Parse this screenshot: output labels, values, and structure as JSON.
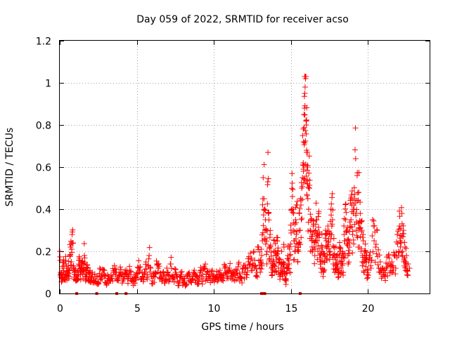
{
  "colors": {
    "series": "#ff0000",
    "axis": "#000000",
    "grid": "#a0a0a0"
  },
  "chart_data": {
    "type": "scatter",
    "title": "Day 059 of 2022, SRMTID for receiver acso",
    "xlabel": "GPS time / hours",
    "ylabel": "SRMTID / TECUs",
    "xlim": [
      0,
      24
    ],
    "ylim": [
      0,
      1.2
    ],
    "xticks": [
      0,
      5,
      10,
      15,
      20
    ],
    "xtick_labels": [
      "0",
      "5",
      "10",
      "15",
      "20"
    ],
    "yticks": [
      0,
      0.2,
      0.4,
      0.6,
      0.8,
      1.0,
      1.2
    ],
    "ytick_labels": [
      "0",
      "0.2",
      "0.4",
      "0.6",
      "0.8",
      "1",
      "1.2"
    ],
    "grid": true,
    "marker": "+",
    "series": [
      {
        "name": "SRMTID acso",
        "x": [
          0.0,
          0.1,
          0.2,
          0.3,
          0.4,
          0.5,
          0.6,
          0.7,
          0.8,
          0.9,
          1.0,
          1.1,
          1.2,
          1.3,
          1.4,
          1.5,
          1.6,
          1.7,
          1.8,
          1.9,
          2.0,
          2.2,
          2.4,
          2.6,
          2.8,
          3.0,
          3.2,
          3.4,
          3.6,
          3.8,
          4.0,
          4.2,
          4.4,
          4.6,
          4.8,
          5.0,
          5.2,
          5.4,
          5.6,
          5.8,
          6.0,
          6.2,
          6.4,
          6.6,
          6.8,
          7.0,
          7.2,
          7.4,
          7.6,
          7.8,
          8.0,
          8.2,
          8.4,
          8.6,
          8.8,
          9.0,
          9.2,
          9.4,
          9.6,
          9.8,
          10.0,
          10.2,
          10.4,
          10.6,
          10.8,
          11.0,
          11.2,
          11.4,
          11.6,
          11.8,
          12.0,
          12.2,
          12.4,
          12.6,
          12.8,
          13.0,
          13.1,
          13.2,
          13.3,
          13.4,
          13.5,
          13.6,
          13.7,
          13.8,
          13.9,
          14.0,
          14.1,
          14.2,
          14.3,
          14.4,
          14.5,
          14.6,
          14.7,
          14.8,
          14.9,
          15.0,
          15.1,
          15.2,
          15.3,
          15.4,
          15.5,
          15.6,
          15.7,
          15.8,
          15.85,
          15.9,
          15.95,
          16.0,
          16.05,
          16.1,
          16.2,
          16.3,
          16.4,
          16.5,
          16.6,
          16.7,
          16.8,
          16.9,
          17.0,
          17.1,
          17.2,
          17.3,
          17.4,
          17.5,
          17.6,
          17.7,
          17.8,
          17.9,
          18.0,
          18.1,
          18.2,
          18.3,
          18.4,
          18.5,
          18.6,
          18.7,
          18.8,
          18.9,
          19.0,
          19.1,
          19.2,
          19.3,
          19.4,
          19.5,
          19.6,
          19.7,
          19.8,
          19.9,
          20.0,
          20.2,
          20.4,
          20.6,
          20.8,
          21.0,
          21.2,
          21.4,
          21.6,
          21.8,
          22.0,
          22.1,
          22.2,
          22.3,
          22.4,
          22.5,
          22.6,
          22.7
        ],
        "y": [
          0.2,
          0.09,
          0.12,
          0.07,
          0.14,
          0.1,
          0.08,
          0.22,
          0.28,
          0.13,
          0.09,
          0.07,
          0.1,
          0.12,
          0.15,
          0.11,
          0.18,
          0.09,
          0.12,
          0.1,
          0.07,
          0.06,
          0.08,
          0.12,
          0.09,
          0.05,
          0.07,
          0.08,
          0.1,
          0.06,
          0.09,
          0.08,
          0.07,
          0.1,
          0.06,
          0.09,
          0.11,
          0.08,
          0.15,
          0.18,
          0.06,
          0.1,
          0.12,
          0.08,
          0.05,
          0.09,
          0.14,
          0.07,
          0.08,
          0.06,
          0.05,
          0.04,
          0.1,
          0.07,
          0.09,
          0.06,
          0.08,
          0.12,
          0.1,
          0.07,
          0.09,
          0.08,
          0.11,
          0.06,
          0.1,
          0.12,
          0.08,
          0.09,
          0.14,
          0.07,
          0.1,
          0.12,
          0.16,
          0.2,
          0.1,
          0.12,
          0.18,
          0.55,
          0.4,
          0.3,
          0.53,
          0.22,
          0.15,
          0.1,
          0.2,
          0.18,
          0.25,
          0.12,
          0.08,
          0.2,
          0.15,
          0.1,
          0.06,
          0.18,
          0.22,
          0.3,
          0.46,
          0.25,
          0.35,
          0.42,
          0.2,
          0.3,
          0.5,
          0.62,
          0.85,
          0.95,
          1.02,
          0.8,
          0.6,
          0.45,
          0.5,
          0.35,
          0.28,
          0.22,
          0.3,
          0.25,
          0.38,
          0.15,
          0.2,
          0.1,
          0.18,
          0.25,
          0.32,
          0.28,
          0.4,
          0.35,
          0.22,
          0.16,
          0.12,
          0.08,
          0.2,
          0.15,
          0.1,
          0.25,
          0.3,
          0.18,
          0.22,
          0.35,
          0.28,
          0.4,
          0.64,
          0.56,
          0.48,
          0.38,
          0.3,
          0.25,
          0.2,
          0.15,
          0.1,
          0.12,
          0.25,
          0.3,
          0.15,
          0.09,
          0.12,
          0.14,
          0.1,
          0.12,
          0.2,
          0.25,
          0.38,
          0.3,
          0.22,
          0.18,
          0.14,
          0.12
        ],
        "x2": [
          0.05,
          0.15,
          0.25,
          0.35,
          0.45,
          0.55,
          0.65,
          0.75,
          0.85,
          0.95,
          1.05,
          1.15,
          1.25,
          1.35,
          1.45,
          1.55,
          1.65,
          1.75,
          1.85,
          1.95,
          2.1,
          2.3,
          2.5,
          2.7,
          2.9,
          3.1,
          3.3,
          3.5,
          3.7,
          3.9,
          4.1,
          4.3,
          4.5,
          4.7,
          4.9,
          5.1,
          5.3,
          5.5,
          5.7,
          5.9,
          6.1,
          6.3,
          6.5,
          6.7,
          6.9,
          7.1,
          7.3,
          7.5,
          7.7,
          7.9,
          8.1,
          8.3,
          8.5,
          8.7,
          8.9,
          9.1,
          9.3,
          9.5,
          9.7,
          9.9,
          10.1,
          10.3,
          10.5,
          10.7,
          10.9,
          11.1,
          11.3,
          11.5,
          11.7,
          11.9,
          12.1,
          12.3,
          12.5,
          12.7,
          12.9,
          13.05,
          13.15,
          13.25,
          13.35,
          13.45,
          13.55,
          13.65,
          13.75,
          13.85,
          13.95,
          14.05,
          14.15,
          14.25,
          14.35,
          14.45,
          14.55,
          14.65,
          14.75,
          14.85,
          14.95,
          15.05,
          15.15,
          15.25,
          15.35,
          15.45,
          15.55,
          15.65,
          15.75,
          15.82,
          15.88,
          15.92,
          15.98,
          16.02,
          16.08,
          16.15,
          16.25,
          16.35,
          16.45,
          16.55,
          16.65,
          16.75,
          16.85,
          16.95,
          17.05,
          17.15,
          17.25,
          17.35,
          17.45,
          17.55,
          17.65,
          17.75,
          17.85,
          17.95,
          18.05,
          18.15,
          18.25,
          18.35,
          18.45,
          18.55,
          18.65,
          18.75,
          18.85,
          18.95,
          19.05,
          19.15,
          19.25,
          19.35,
          19.45,
          19.55,
          19.65,
          19.75,
          19.85,
          19.95,
          20.1,
          20.3,
          20.5,
          20.7,
          20.9,
          21.1,
          21.3,
          21.5,
          21.7,
          21.9,
          22.05,
          22.15,
          22.25,
          22.35,
          22.45,
          22.55,
          22.65
        ],
        "y2": [
          0.1,
          0.06,
          0.16,
          0.09,
          0.08,
          0.12,
          0.18,
          0.15,
          0.24,
          0.1,
          0.06,
          0.08,
          0.13,
          0.09,
          0.12,
          0.14,
          0.08,
          0.11,
          0.07,
          0.09,
          0.1,
          0.08,
          0.05,
          0.07,
          0.11,
          0.09,
          0.06,
          0.1,
          0.07,
          0.09,
          0.06,
          0.1,
          0.09,
          0.07,
          0.08,
          0.12,
          0.07,
          0.1,
          0.09,
          0.12,
          0.08,
          0.14,
          0.07,
          0.1,
          0.09,
          0.06,
          0.08,
          0.1,
          0.05,
          0.09,
          0.07,
          0.08,
          0.06,
          0.1,
          0.08,
          0.1,
          0.07,
          0.09,
          0.08,
          0.11,
          0.07,
          0.1,
          0.09,
          0.12,
          0.08,
          0.1,
          0.09,
          0.11,
          0.08,
          0.12,
          0.09,
          0.14,
          0.11,
          0.13,
          0.22,
          0.15,
          0.25,
          0.45,
          0.35,
          0.2,
          0.38,
          0.28,
          0.12,
          0.16,
          0.14,
          0.1,
          0.2,
          0.15,
          0.12,
          0.1,
          0.22,
          0.07,
          0.12,
          0.14,
          0.1,
          0.4,
          0.3,
          0.2,
          0.28,
          0.15,
          0.38,
          0.42,
          0.55,
          0.72,
          0.88,
          0.98,
          0.82,
          0.68,
          0.52,
          0.4,
          0.3,
          0.25,
          0.32,
          0.18,
          0.35,
          0.2,
          0.28,
          0.12,
          0.22,
          0.15,
          0.3,
          0.18,
          0.26,
          0.2,
          0.32,
          0.14,
          0.1,
          0.18,
          0.14,
          0.22,
          0.12,
          0.2,
          0.28,
          0.35,
          0.3,
          0.25,
          0.32,
          0.42,
          0.38,
          0.45,
          0.34,
          0.3,
          0.22,
          0.2,
          0.18,
          0.1,
          0.16,
          0.09,
          0.18,
          0.35,
          0.22,
          0.12,
          0.11,
          0.08,
          0.14,
          0.13,
          0.18,
          0.28,
          0.32,
          0.24,
          0.2,
          0.16,
          0.13,
          0.11
        ]
      }
    ],
    "bottom_markers_x": [
      1.1,
      2.4,
      3.7,
      4.3,
      13.1,
      13.2,
      13.3,
      15.6
    ]
  }
}
